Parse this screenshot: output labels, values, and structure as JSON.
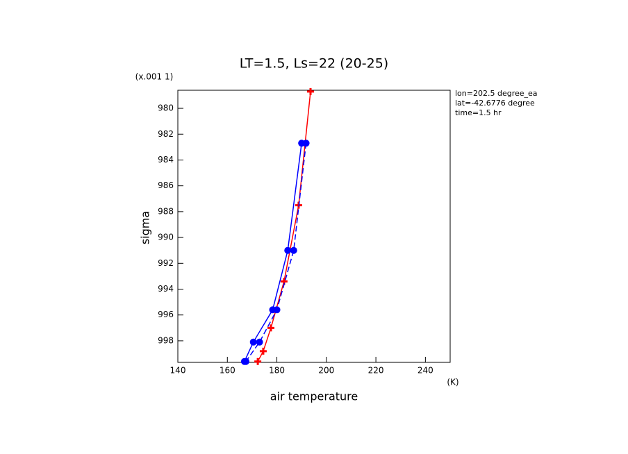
{
  "chart_data": {
    "type": "profile",
    "title": "LT=1.5, Ls=22 (20-25)",
    "y_multiplier": "(x.001 1)",
    "x_units": "(K)",
    "xlabel": "air temperature",
    "ylabel": "sigma",
    "annotations": [
      "lon=202.5 degree_ea",
      "lat=-42.6776 degree",
      "time=1.5 hr"
    ],
    "xlim": [
      140,
      250
    ],
    "xticks": [
      140,
      160,
      180,
      200,
      220,
      240
    ],
    "ylim": [
      978.6,
      999.67
    ],
    "yticks": [
      980,
      982,
      984,
      986,
      988,
      990,
      992,
      994,
      996,
      998
    ],
    "series": [
      {
        "color": "#ff0000",
        "marker": "plus",
        "dash": "solid",
        "x": [
          193.6,
          188.8,
          182.9,
          177.6,
          174.5,
          172.3
        ],
        "y": [
          978.7,
          987.5,
          993.4,
          997.0,
          998.8,
          999.6
        ]
      },
      {
        "color": "#0000ff",
        "marker": "circle",
        "dash": "solid",
        "x": [
          190.0,
          184.4,
          178.3,
          170.5,
          166.9
        ],
        "y": [
          982.7,
          991.0,
          995.6,
          998.1,
          999.6
        ]
      },
      {
        "color": "#0000ff",
        "marker": "circle",
        "dash": "dashed",
        "x": [
          191.8,
          186.8,
          180.0,
          173.0,
          167.5
        ],
        "y": [
          982.7,
          991.0,
          995.6,
          998.1,
          999.6
        ]
      }
    ]
  }
}
